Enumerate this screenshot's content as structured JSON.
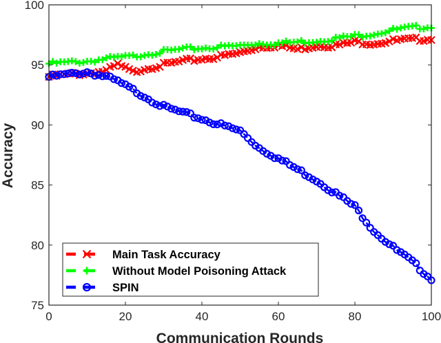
{
  "chart_data": {
    "type": "line",
    "title": "",
    "xlabel": "Communication Rounds",
    "ylabel": "Accuracy",
    "xlim": [
      0,
      100
    ],
    "ylim": [
      75,
      100
    ],
    "xticks": [
      0,
      20,
      40,
      60,
      80,
      100
    ],
    "yticks": [
      75,
      80,
      85,
      90,
      95,
      100
    ],
    "grid": false,
    "legend_position": "lower left",
    "x": [
      0,
      5,
      10,
      15,
      18,
      22,
      25,
      30,
      35,
      40,
      45,
      50,
      55,
      60,
      65,
      70,
      75,
      80,
      85,
      90,
      95,
      100
    ],
    "series": [
      {
        "name": "Main Task Accuracy",
        "color": "#ff0000",
        "marker": "x",
        "values": [
          94.0,
          94.2,
          94.3,
          94.5,
          95.0,
          94.4,
          94.7,
          95.0,
          95.3,
          95.5,
          95.7,
          96.0,
          96.5,
          96.6,
          96.3,
          96.6,
          96.6,
          96.9,
          96.8,
          97.0,
          97.1,
          97.2
        ]
      },
      {
        "name": "Without Model Poisoning Attack",
        "color": "#00ff00",
        "marker": "+",
        "values": [
          95.1,
          95.2,
          95.3,
          95.5,
          95.6,
          95.7,
          95.9,
          96.1,
          96.3,
          96.4,
          96.5,
          96.6,
          96.8,
          96.8,
          96.9,
          97.0,
          97.2,
          97.4,
          97.6,
          97.9,
          98.1,
          98.2
        ]
      },
      {
        "name": "SPIN",
        "color": "#0000ff",
        "marker": "o",
        "values": [
          94.0,
          94.2,
          94.4,
          94.0,
          93.6,
          92.9,
          92.4,
          91.5,
          91.0,
          90.5,
          90.0,
          89.5,
          88.1,
          87.2,
          86.3,
          85.4,
          84.3,
          83.2,
          81.2,
          79.8,
          78.6,
          77.2
        ]
      }
    ]
  },
  "legend": {
    "items": [
      {
        "label": "Main Task Accuracy"
      },
      {
        "label": "Without Model Poisoning Attack"
      },
      {
        "label": "SPIN"
      }
    ]
  }
}
